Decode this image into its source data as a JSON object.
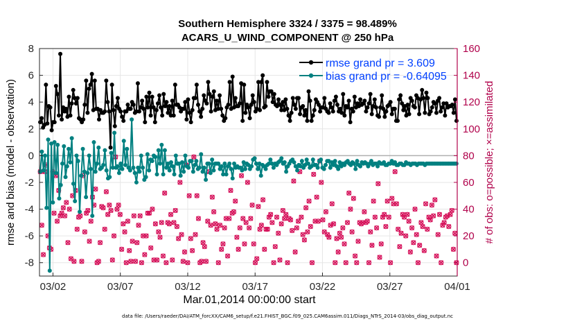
{
  "chart_data": {
    "type": "line",
    "title": "Southern Hemisphere 3324 / 3375 = 98.489%",
    "subtitle": "ACARS_U_WIND_COMPONENT @ 250 hPa",
    "xlabel": "Mar.01,2014 00:00:00 start",
    "ylabel_left": "rmse and bias (model - observation)",
    "ylabel_right": "# of obs: o=possible; ×=assimilated",
    "xlim": [
      0,
      31
    ],
    "ylim_left": [
      -9,
      8
    ],
    "ylim_right": [
      -10,
      160
    ],
    "x_ticks": [
      1,
      6,
      11,
      16,
      21,
      26,
      31
    ],
    "x_tick_labels": [
      "03/02",
      "03/07",
      "03/12",
      "03/17",
      "03/22",
      "03/27",
      "04/01"
    ],
    "y_ticks_left": [
      -8,
      -6,
      -4,
      -2,
      0,
      2,
      4,
      6,
      8
    ],
    "y_ticks_right": [
      0,
      20,
      40,
      60,
      80,
      100,
      120,
      140,
      160
    ],
    "legend": [
      "rmse grand pr = 3.609",
      "bias grand pr = -0.64095"
    ],
    "legend_position": "top-right",
    "grid": true,
    "series": [
      {
        "name": "rmse grand pr = 3.609",
        "axis": "left",
        "color": "#000000",
        "marker": "filled-circle",
        "y": [
          2.5,
          2.8,
          2.1,
          2.3,
          5.3,
          2.4,
          3.7,
          3.6,
          1.9,
          2.5,
          2.5,
          5.2,
          4.6,
          3.0,
          7.6,
          2.7,
          3.6,
          3.3,
          3.5,
          2.9,
          4.4,
          3.0,
          3.9,
          4.9,
          4.3,
          3.9,
          4.3,
          2.8,
          2.7,
          2.5,
          2.7,
          3.8,
          5.6,
          3.2,
          5.0,
          5.3,
          6.1,
          3.4,
          5.6,
          3.5,
          3.5,
          2.7,
          3.4,
          3.2,
          3.2,
          3.3,
          5.6,
          4.0,
          3.3,
          0.6,
          5.3,
          3.4,
          2.2,
          3.7,
          4.3,
          3.5,
          3.3,
          2.9,
          2.6,
          3.3,
          3.3,
          3.8,
          3.5,
          3.5,
          4.0,
          3.8,
          3.2,
          3.3,
          5.4,
          3.3,
          3.6,
          4.1,
          3.5,
          2.5,
          4.4,
          3.6,
          4.7,
          3.0,
          4.4,
          3.6,
          2.5,
          3.4,
          3.9,
          4.5,
          3.6,
          3.0,
          4.6,
          3.7,
          4.0,
          3.2,
          3.7,
          3.0,
          4.1,
          3.0,
          5.3,
          3.8,
          3.8,
          3.6,
          3.3,
          3.5,
          3.5,
          4.0,
          2.7,
          4.2,
          3.2,
          2.5,
          3.4,
          4.3,
          4.3,
          5.3,
          3.8,
          3.3,
          2.9,
          3.5,
          4.5,
          4.1,
          3.9,
          5.5,
          4.6,
          3.3,
          4.4,
          4.8,
          3.4,
          4.1,
          3.5,
          4.5,
          3.5,
          3.0,
          2.6,
          2.8,
          3.6,
          3.8,
          5.5,
          3.5,
          5.9,
          3.6,
          4.3,
          3.7,
          3.7,
          3.9,
          5.4,
          2.6,
          5.3,
          3.2,
          3.8,
          3.6,
          2.8,
          3.8,
          4.5,
          4.0,
          3.3,
          3.5,
          5.5,
          3.4,
          5.5,
          6.0,
          3.6,
          3.7,
          5.5,
          4.4,
          4.8,
          4.8,
          4.0,
          4.6,
          3.8,
          3.7,
          4.2,
          3.8,
          3.4,
          4.0,
          3.4,
          4.2,
          3.5,
          3.0,
          2.6,
          3.2,
          4.3,
          3.8,
          3.5,
          4.3,
          4.3,
          3.1,
          3.6,
          3.7,
          3.0,
          3.4,
          2.6,
          4.8,
          4.1,
          2.6,
          3.0,
          3.4,
          4.2,
          4.0,
          3.8,
          3.3,
          3.6,
          3.6,
          4.3,
          3.5,
          3.3,
          3.2,
          3.9,
          3.6,
          3.3,
          4.1,
          4.4,
          3.8,
          3.3,
          3.5,
          3.2,
          4.6,
          3.0,
          3.7,
          3.6,
          4.1,
          2.5,
          3.5,
          3.3,
          4.4,
          3.6,
          3.9,
          3.7,
          4.2,
          3.8,
          3.9,
          4.1,
          3.3,
          3.6,
          3.9,
          4.6,
          3.1,
          3.7,
          4.2,
          3.6,
          3.0,
          2.9,
          3.6,
          4.5,
          3.5,
          2.9,
          3.3,
          3.7,
          3.8,
          4.0,
          3.1,
          3.5,
          3.5,
          2.6,
          2.6,
          4.2,
          4.5,
          3.9,
          3.4,
          3.7,
          3.0,
          3.8,
          3.1,
          4.3,
          4.1,
          3.7,
          3.6,
          4.5,
          4.3,
          3.1,
          4.2,
          4.9,
          4.3,
          3.2,
          4.7,
          4.3,
          3.1,
          3.3,
          3.6,
          4.0,
          3.9,
          3.2,
          4.1,
          4.3,
          3.3,
          3.6,
          3.9,
          3.0,
          3.9,
          3.6,
          3.7,
          3.7,
          3.8,
          3.2,
          4.2,
          2.6
        ]
      },
      {
        "name": "bias grand pr = -0.64095",
        "axis": "left",
        "color": "#008080",
        "marker": "filled-circle",
        "y": [
          -1.2,
          0.3,
          -1.1,
          0.0,
          -3.9,
          1.2,
          -8.6,
          0.9,
          -3.5,
          1.0,
          -1.3,
          0.8,
          -3.2,
          -2.2,
          -0.6,
          0.7,
          -1.6,
          -0.8,
          0.5,
          -0.5,
          1.3,
          -2.1,
          -3.4,
          0.0,
          -0.4,
          -4.2,
          -1.5,
          0.5,
          -1.2,
          -3.1,
          -1.3,
          0.0,
          -1.0,
          -4.5,
          1.0,
          -1.2,
          -0.6,
          0.6,
          -1.0,
          -0.9,
          -0.7,
          0.4,
          -1.1,
          -1.7,
          -1.6,
          0.2,
          -0.9,
          1.7,
          -0.9,
          -0.8,
          -1.3,
          -0.6,
          -1.0,
          1.1,
          -0.7,
          0.5,
          -0.9,
          -1.1,
          2.7,
          -0.9,
          -1.3,
          -2.0,
          -0.9,
          -1.2,
          0.0,
          -0.9,
          -1.8,
          -1.6,
          0.1,
          -1.1,
          -0.3,
          -0.4,
          0.0,
          -0.1,
          -1.4,
          0.4,
          -0.6,
          0.8,
          -1.4,
          0.4,
          -0.9,
          -0.6,
          -1.1,
          -0.5,
          -0.8,
          -1.4,
          0.0,
          -0.6,
          -0.6,
          -1.5,
          -0.5,
          -1.2,
          0.0,
          -0.8,
          -0.9,
          -0.4,
          -0.4,
          -1.2,
          -0.7,
          -0.4,
          -1.0,
          -0.9,
          0.1,
          -1.2,
          -0.9,
          -1.8,
          -0.6,
          -0.6,
          -1.3,
          -0.3,
          -1.1,
          -0.6,
          -0.6,
          -0.6,
          -1.0,
          -0.8,
          -1.4,
          -0.6,
          -1.4,
          -0.8,
          -0.6,
          -1.0,
          -1.7,
          -0.6,
          -0.9,
          -0.8,
          -0.9,
          -0.9,
          -1.1,
          -0.5,
          -1.0,
          -0.6,
          -0.7,
          -1.0,
          -0.8,
          -0.3,
          -0.2,
          -0.6,
          -1.0,
          -0.6,
          -1.5,
          -0.7,
          -0.8,
          -1.0,
          -0.7,
          -0.6,
          -0.3,
          -0.6,
          -0.9,
          -0.6,
          -0.7,
          -0.5,
          -0.4,
          -0.2,
          -0.6,
          -0.5,
          -1.2,
          -0.8,
          -0.6,
          -0.4,
          -0.3,
          -0.5,
          -0.8,
          -1.1,
          -0.7,
          -0.8,
          -0.4,
          -0.9,
          -0.7,
          -0.3,
          -0.6,
          -0.9,
          -0.8,
          -0.3,
          -0.7,
          -0.7,
          -0.9,
          -0.4,
          -0.3,
          -0.9,
          -1.0,
          -0.7,
          -0.4,
          -0.4,
          -0.9,
          -0.5,
          -0.7,
          -0.4,
          -0.8,
          -1.0,
          -0.5,
          -0.8,
          -0.6,
          -0.7,
          -0.5,
          -0.4,
          -0.6,
          -0.7,
          -0.5,
          -0.6,
          -1.0,
          -0.4,
          -0.7,
          -0.8,
          -0.5,
          -0.6,
          -0.5,
          -0.6,
          -0.8,
          -0.6,
          -0.4,
          -0.7,
          -0.6,
          -0.6,
          -0.8,
          -0.5,
          -0.6,
          -0.6,
          -0.5,
          -0.7,
          -0.7,
          -0.6,
          -0.6,
          -0.4,
          -0.6,
          -0.5,
          -0.7,
          -0.7,
          -0.6,
          -0.6,
          -0.7,
          -0.7,
          -0.5,
          -0.6,
          -0.6,
          -0.7,
          -0.6,
          -0.6,
          -0.6,
          -0.7,
          -0.6,
          -0.6,
          -0.6,
          -0.6,
          -0.7,
          -0.6,
          -0.6,
          -0.6,
          -0.6,
          -0.6,
          -0.6,
          -0.6,
          -0.6,
          -0.6,
          -0.6,
          -0.6,
          -0.6,
          -0.6,
          -0.6,
          -0.6,
          -0.6,
          -0.6,
          -0.6,
          -0.6,
          -0.6
        ]
      },
      {
        "name": "possible",
        "axis": "right",
        "color": "#d6145c",
        "marker": "open-circle",
        "y": [
          68,
          28,
          6,
          68,
          73,
          20,
          11,
          10,
          68,
          37,
          65,
          31,
          54,
          35,
          37,
          41,
          35,
          45,
          15,
          40,
          3,
          50,
          1,
          54,
          25,
          34,
          35,
          1,
          65,
          23,
          37,
          39,
          16,
          31,
          49,
          43,
          55,
          0,
          1,
          15,
          42,
          41,
          25,
          53,
          36,
          43,
          39,
          2,
          20,
          79,
          40,
          43,
          36,
          10,
          29,
          23,
          0,
          31,
          9,
          1,
          16,
          35,
          1,
          15,
          28,
          35,
          0,
          20,
          6,
          20,
          37,
          37,
          11,
          40,
          2,
          29,
          2,
          23,
          19,
          30,
          5,
          52,
          0,
          30,
          29,
          36,
          2,
          30,
          39,
          27,
          18,
          60,
          21,
          1,
          8,
          73,
          0,
          50,
          18,
          9,
          79,
          21,
          50,
          33,
          0,
          1,
          15,
          12,
          1,
          31,
          68,
          28,
          49,
          38,
          29,
          25,
          0,
          28,
          10,
          14,
          26,
          33,
          5,
          33,
          54,
          37,
          38,
          46,
          19,
          10,
          26,
          65,
          33,
          14,
          30,
          60,
          26,
          33,
          43,
          14,
          0,
          3,
          42,
          25,
          28,
          47,
          10,
          25,
          25,
          34,
          36,
          30,
          0,
          12,
          34,
          22,
          2,
          29,
          39,
          33,
          36,
          0,
          33,
          32,
          24,
          61,
          8,
          26,
          31,
          68,
          34,
          21,
          17,
          41,
          23,
          46,
          27,
          0,
          66,
          31,
          49,
          31,
          76,
          60,
          32,
          23,
          38,
          21,
          19,
          28,
          44,
          29,
          0,
          18,
          8,
          22,
          19,
          26,
          14,
          0,
          30,
          52,
          40,
          23,
          48,
          5,
          0,
          16,
          30,
          29,
          30,
          38,
          30,
          31,
          0,
          23,
          13,
          46,
          34,
          26,
          59,
          4,
          14,
          34,
          36,
          27,
          46,
          34,
          0,
          48,
          44,
          68,
          44,
          25,
          12,
          22,
          36,
          34,
          20,
          36,
          31,
          8,
          26,
          15,
          40,
          21,
          0,
          13,
          30,
          27,
          9,
          44,
          25,
          34,
          32,
          43,
          35,
          47,
          5,
          21,
          36,
          0,
          28,
          30,
          34,
          35,
          27,
          36,
          39,
          10,
          22,
          0
        ]
      },
      {
        "name": "assimilated",
        "axis": "right",
        "color": "#d6145c",
        "marker": "x",
        "y": [
          68,
          28,
          6,
          68,
          73,
          20,
          11,
          10,
          68,
          37,
          65,
          31,
          54,
          35,
          37,
          41,
          35,
          45,
          15,
          40,
          3,
          50,
          1,
          54,
          25,
          34,
          35,
          1,
          65,
          23,
          37,
          39,
          16,
          31,
          49,
          43,
          55,
          0,
          1,
          15,
          42,
          41,
          25,
          53,
          36,
          43,
          39,
          2,
          20,
          79,
          40,
          43,
          36,
          10,
          29,
          23,
          0,
          31,
          9,
          1,
          16,
          35,
          1,
          15,
          28,
          35,
          0,
          20,
          6,
          20,
          37,
          37,
          11,
          40,
          2,
          29,
          2,
          23,
          19,
          30,
          5,
          52,
          0,
          30,
          29,
          36,
          2,
          30,
          39,
          27,
          18,
          60,
          21,
          1,
          8,
          73,
          0,
          50,
          18,
          9,
          79,
          21,
          50,
          33,
          0,
          1,
          15,
          12,
          1,
          31,
          68,
          28,
          49,
          38,
          29,
          25,
          0,
          28,
          10,
          14,
          26,
          33,
          5,
          33,
          54,
          37,
          38,
          46,
          19,
          10,
          26,
          65,
          33,
          14,
          30,
          60,
          26,
          33,
          43,
          14,
          0,
          3,
          42,
          25,
          28,
          47,
          10,
          25,
          25,
          34,
          36,
          30,
          0,
          12,
          34,
          22,
          2,
          29,
          39,
          33,
          36,
          0,
          33,
          32,
          24,
          61,
          8,
          26,
          31,
          68,
          34,
          21,
          17,
          41,
          23,
          46,
          27,
          0,
          66,
          31,
          49,
          31,
          76,
          60,
          32,
          23,
          38,
          21,
          19,
          28,
          44,
          29,
          0,
          18,
          8,
          22,
          19,
          26,
          14,
          0,
          30,
          52,
          40,
          23,
          48,
          5,
          0,
          16,
          30,
          29,
          30,
          38,
          30,
          31,
          0,
          23,
          13,
          46,
          34,
          26,
          59,
          4,
          14,
          34,
          36,
          27,
          46,
          34,
          0,
          48,
          44,
          68,
          44,
          25,
          12,
          22,
          36,
          34,
          20,
          36,
          31,
          8,
          26,
          15,
          40,
          21,
          0,
          13,
          30,
          27,
          9,
          44,
          25,
          34,
          32,
          43,
          35,
          47,
          5,
          21,
          36,
          0,
          28,
          30,
          34,
          35,
          27,
          36,
          39,
          10,
          22,
          0
        ]
      }
    ]
  },
  "footer": "data file: /Users/raeder/DAI/ATM_forcXX/CAM6_setup/f.e21.FHIST_BGC.f09_025.CAM6assim.011/Diags_NTrS_2014-03/obs_diag_output.nc",
  "colors": {
    "rmse": "#000000",
    "bias": "#008080",
    "obs": "#d6145c",
    "right_axis": "#b0004a",
    "legend_text": "#0040ff"
  }
}
